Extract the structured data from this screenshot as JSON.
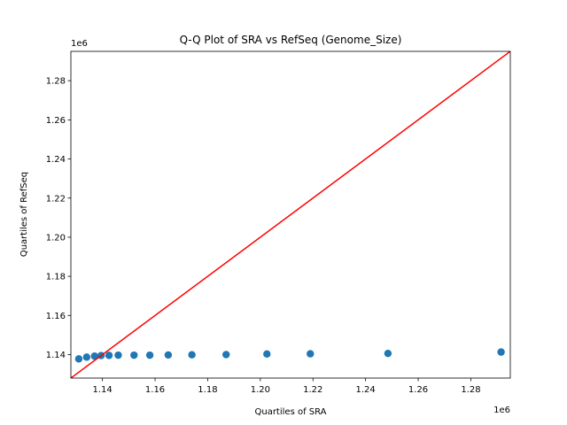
{
  "chart_data": {
    "type": "scatter",
    "title": "Q-Q Plot of SRA vs RefSeq (Genome_Size)",
    "xlabel": "Quartiles of SRA",
    "ylabel": "Quartiles of RefSeq",
    "x_offset_label": "1e6",
    "y_offset_label": "1e6",
    "xlim": [
      1128000,
      1295000
    ],
    "ylim": [
      1128000,
      1295000
    ],
    "x_ticks": [
      1140000,
      1160000,
      1180000,
      1200000,
      1220000,
      1240000,
      1260000,
      1280000
    ],
    "x_tick_labels": [
      "1.14",
      "1.16",
      "1.18",
      "1.20",
      "1.22",
      "1.24",
      "1.26",
      "1.28"
    ],
    "y_ticks": [
      1140000,
      1160000,
      1180000,
      1200000,
      1220000,
      1240000,
      1260000,
      1280000
    ],
    "y_tick_labels": [
      "1.14",
      "1.16",
      "1.18",
      "1.20",
      "1.22",
      "1.24",
      "1.26",
      "1.28"
    ],
    "grid": false,
    "points": [
      {
        "x": 1131000,
        "y": 1137800
      },
      {
        "x": 1134000,
        "y": 1138700
      },
      {
        "x": 1137000,
        "y": 1139200
      },
      {
        "x": 1139500,
        "y": 1139500
      },
      {
        "x": 1142500,
        "y": 1139600
      },
      {
        "x": 1146000,
        "y": 1139700
      },
      {
        "x": 1152000,
        "y": 1139700
      },
      {
        "x": 1158000,
        "y": 1139700
      },
      {
        "x": 1165000,
        "y": 1139800
      },
      {
        "x": 1174000,
        "y": 1139900
      },
      {
        "x": 1187000,
        "y": 1140000
      },
      {
        "x": 1202500,
        "y": 1140300
      },
      {
        "x": 1219000,
        "y": 1140400
      },
      {
        "x": 1248500,
        "y": 1140600
      },
      {
        "x": 1291500,
        "y": 1141300
      }
    ],
    "reference_line": {
      "from": [
        1128000,
        1128000
      ],
      "to": [
        1295000,
        1295000
      ]
    },
    "colors": {
      "points": "#1f77b4",
      "reference_line": "#ff0000",
      "axes": "#000000"
    }
  }
}
